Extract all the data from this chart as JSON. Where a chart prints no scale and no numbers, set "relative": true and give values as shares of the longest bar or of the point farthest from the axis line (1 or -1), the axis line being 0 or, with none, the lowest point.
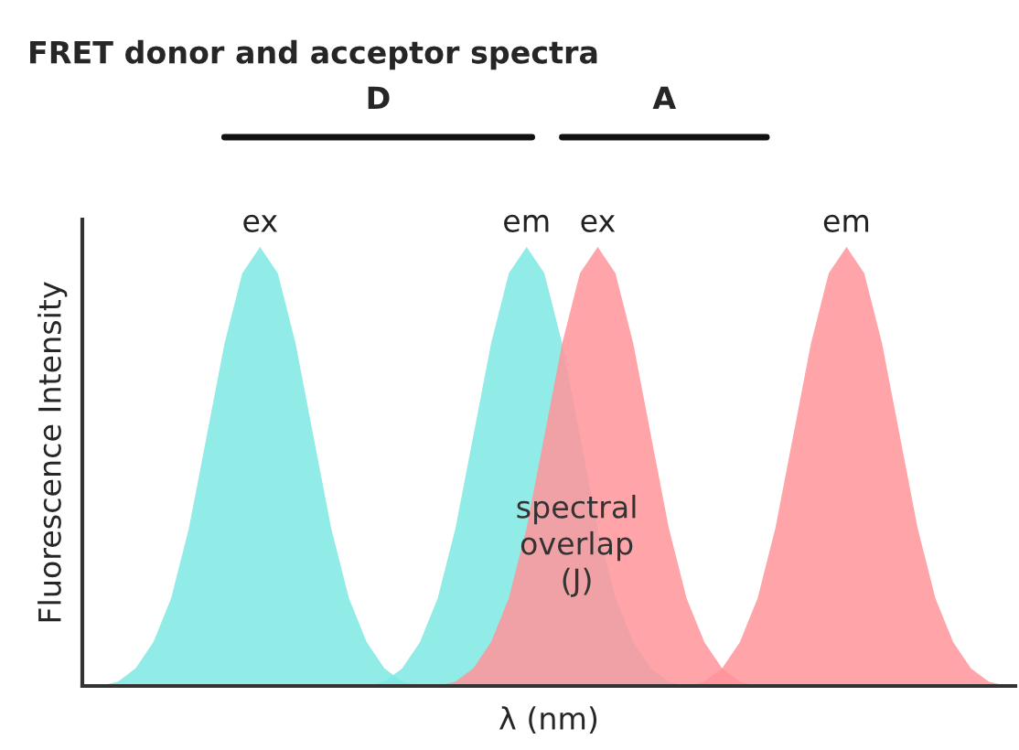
{
  "chart_data": {
    "type": "area",
    "title": "FRET donor and acceptor spectra",
    "xlabel": "λ (nm)",
    "ylabel": "Fluorescence Intensity",
    "relative": true,
    "legend": false,
    "categories": [
      null,
      null,
      null,
      null,
      null,
      null,
      null,
      null,
      null,
      null,
      null,
      null,
      null,
      null,
      null,
      null,
      null,
      null,
      null,
      null,
      null,
      null,
      null,
      null,
      null,
      null,
      null,
      null,
      null,
      null,
      null,
      null,
      null,
      null,
      null,
      null,
      null,
      null,
      null,
      null,
      null,
      null,
      null,
      null,
      null,
      null,
      null,
      null,
      null,
      null,
      null,
      null
    ],
    "series": [
      {
        "name": "ex",
        "color": "#7ee8e3",
        "values": [
          0,
          0.01,
          0.04,
          0.1,
          0.2,
          0.36,
          0.57,
          0.78,
          0.94,
          1,
          0.94,
          0.78,
          0.57,
          0.36,
          0.2,
          0.1,
          0.04,
          0.01,
          0,
          null,
          null,
          null,
          null,
          null,
          null,
          null,
          null,
          null,
          null,
          null,
          null,
          null,
          null,
          null,
          null,
          null,
          null,
          null,
          null,
          null,
          null,
          null,
          null,
          null,
          null,
          null,
          null,
          null,
          null,
          null,
          null,
          null
        ]
      },
      {
        "name": "em",
        "color": "#7ee8e3",
        "values": [
          null,
          null,
          null,
          null,
          null,
          null,
          null,
          null,
          null,
          null,
          null,
          null,
          null,
          null,
          null,
          0,
          0.01,
          0.04,
          0.1,
          0.2,
          0.36,
          0.57,
          0.78,
          0.94,
          1,
          0.94,
          0.78,
          0.57,
          0.36,
          0.2,
          0.1,
          0.04,
          0.01,
          0,
          null,
          null,
          null,
          null,
          null,
          null,
          null,
          null,
          null,
          null,
          null,
          null,
          null,
          null,
          null,
          null,
          null,
          null
        ]
      },
      {
        "name": "ex",
        "color": "#ff9499",
        "values": [
          null,
          null,
          null,
          null,
          null,
          null,
          null,
          null,
          null,
          null,
          null,
          null,
          null,
          null,
          null,
          null,
          null,
          null,
          null,
          0,
          0.01,
          0.04,
          0.1,
          0.2,
          0.36,
          0.57,
          0.78,
          0.94,
          1,
          0.94,
          0.78,
          0.57,
          0.36,
          0.2,
          0.1,
          0.04,
          0.01,
          0,
          null,
          null,
          null,
          null,
          null,
          null,
          null,
          null,
          null,
          null,
          null,
          null,
          null,
          null
        ]
      },
      {
        "name": "em",
        "color": "#ff9499",
        "values": [
          null,
          null,
          null,
          null,
          null,
          null,
          null,
          null,
          null,
          null,
          null,
          null,
          null,
          null,
          null,
          null,
          null,
          null,
          null,
          null,
          null,
          null,
          null,
          null,
          null,
          null,
          null,
          null,
          null,
          null,
          null,
          null,
          null,
          0,
          0.01,
          0.04,
          0.1,
          0.2,
          0.36,
          0.57,
          0.78,
          0.94,
          1,
          0.94,
          0.78,
          0.57,
          0.36,
          0.2,
          0.1,
          0.04,
          0.01,
          0
        ]
      }
    ],
    "annotations": [
      "D",
      "A",
      "spectral\noverlap\n(J)"
    ]
  }
}
